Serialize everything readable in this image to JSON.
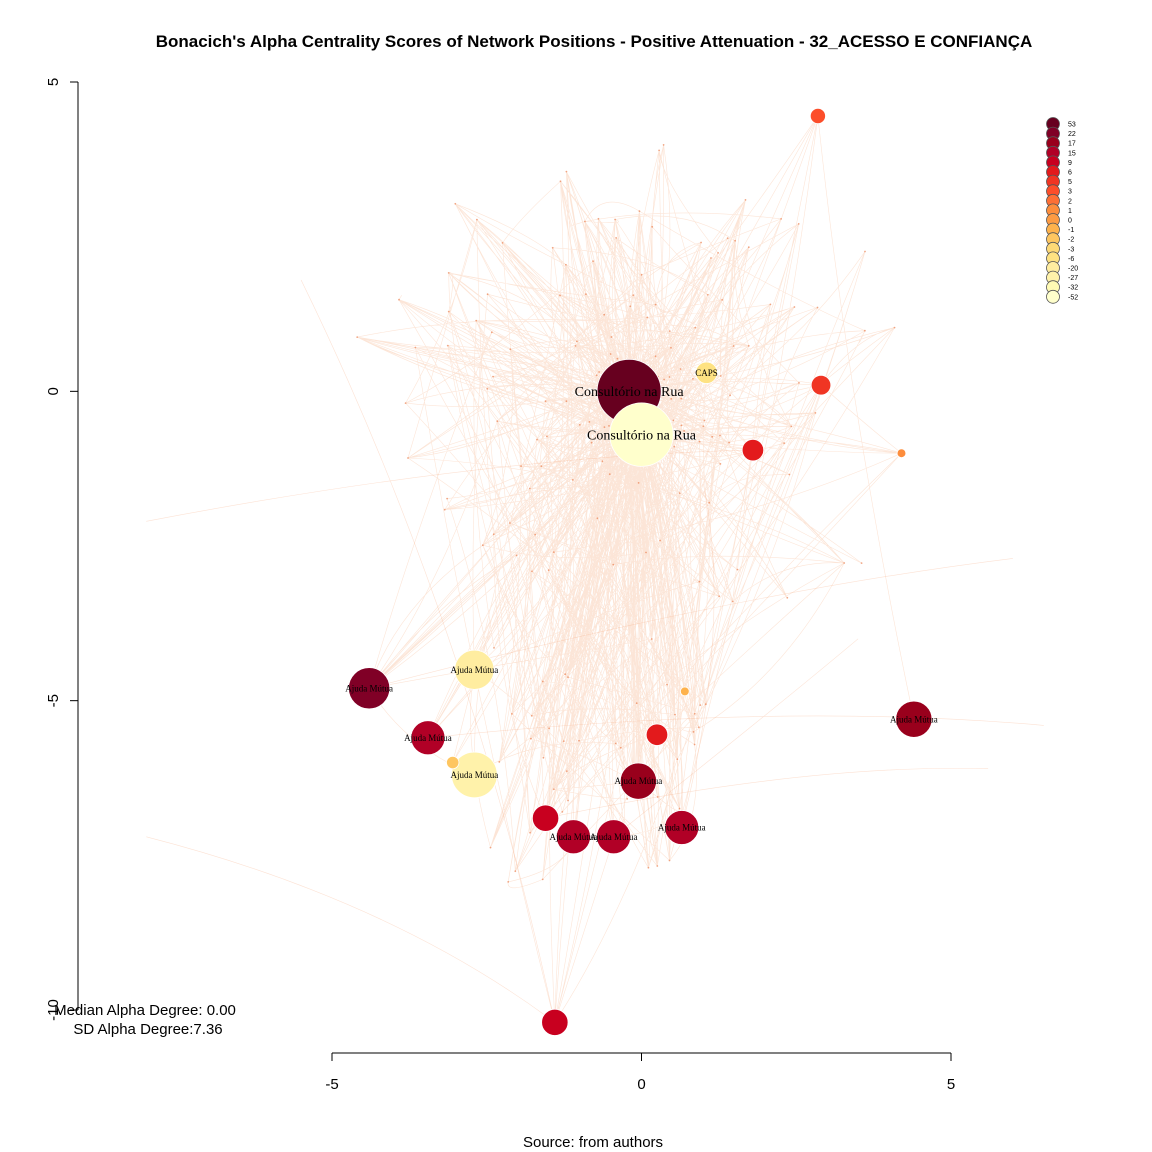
{
  "chart_data": {
    "type": "scatter",
    "title": "Bonacich's Alpha Centrality Scores of Network Positions - Positive Attenuation - 32_ACESSO E CONFIANÇA",
    "xlabel": "",
    "ylabel": "",
    "xlim": [
      -5,
      5
    ],
    "ylim": [
      -10,
      5
    ],
    "x_ticks": [
      "-5",
      "0",
      "5"
    ],
    "y_ticks": [
      "5",
      "0",
      "-5",
      "-10"
    ],
    "grid": false,
    "legend_position": "top-right",
    "legend_values": [
      "53",
      "22",
      "17",
      "15",
      "9",
      "6",
      "5",
      "3",
      "2",
      "1",
      "0",
      "-1",
      "-2",
      "-3",
      "-6",
      "-20",
      "-27",
      "-32",
      "-52"
    ],
    "legend_colors": [
      "#67001f",
      "#800026",
      "#99001c",
      "#b10026",
      "#c8001f",
      "#e31a1c",
      "#f03523",
      "#fc4e2a",
      "#fd6f35",
      "#fd8d3c",
      "#fd9b43",
      "#feb24c",
      "#fec660",
      "#fed976",
      "#fee282",
      "#ffeda0",
      "#fff2aa",
      "#fffab4",
      "#ffffcc"
    ],
    "nodes": [
      {
        "label": "Consultório na Rua",
        "x": -0.2,
        "y": 0.0,
        "alpha": 53
      },
      {
        "label": "Consultório na Rua",
        "x": 0.0,
        "y": -0.7,
        "alpha": -52
      },
      {
        "label": "CAPS",
        "x": 1.05,
        "y": 0.3,
        "alpha": -6
      },
      {
        "label": "Ajuda Mútua",
        "x": -2.7,
        "y": -4.5,
        "alpha": -20
      },
      {
        "label": "Ajuda Mútua",
        "x": -2.7,
        "y": -6.2,
        "alpha": -27
      },
      {
        "label": "Ajuda Mútua",
        "x": -4.4,
        "y": -4.8,
        "alpha": 22
      },
      {
        "label": "Ajuda Mútua",
        "x": -3.45,
        "y": -5.6,
        "alpha": 15
      },
      {
        "label": "Ajuda Mútua",
        "x": -0.05,
        "y": -6.3,
        "alpha": 17
      },
      {
        "label": "Ajuda Mútua",
        "x": -1.1,
        "y": -7.2,
        "alpha": 15
      },
      {
        "label": "Ajuda Mútua",
        "x": -0.45,
        "y": -7.2,
        "alpha": 15
      },
      {
        "label": "Ajuda Mútua",
        "x": 0.65,
        "y": -7.05,
        "alpha": 15
      },
      {
        "label": "Ajuda Mútua",
        "x": 4.4,
        "y": -5.3,
        "alpha": 17
      },
      {
        "label": "",
        "x": -1.55,
        "y": -6.9,
        "alpha": 9
      },
      {
        "label": "",
        "x": -1.4,
        "y": -10.2,
        "alpha": 9
      },
      {
        "label": "",
        "x": 1.8,
        "y": -0.95,
        "alpha": 6
      },
      {
        "label": "",
        "x": 2.9,
        "y": 0.1,
        "alpha": 5
      },
      {
        "label": "",
        "x": 0.25,
        "y": -5.55,
        "alpha": 6
      },
      {
        "label": "",
        "x": -3.05,
        "y": -6.0,
        "alpha": -2
      },
      {
        "label": "",
        "x": 0.7,
        "y": -4.85,
        "alpha": -1
      },
      {
        "label": "",
        "x": 2.85,
        "y": 4.45,
        "alpha": 3
      },
      {
        "label": "",
        "x": 4.2,
        "y": -1.0,
        "alpha": 1
      }
    ],
    "median_alpha_degree": "0.00",
    "sd_alpha_degree": "7.36"
  },
  "annotations": {
    "median_text": "Median Alpha Degree: 0.00",
    "sd_text": "SD Alpha Degree:7.36",
    "source_text": "Source: from authors"
  }
}
